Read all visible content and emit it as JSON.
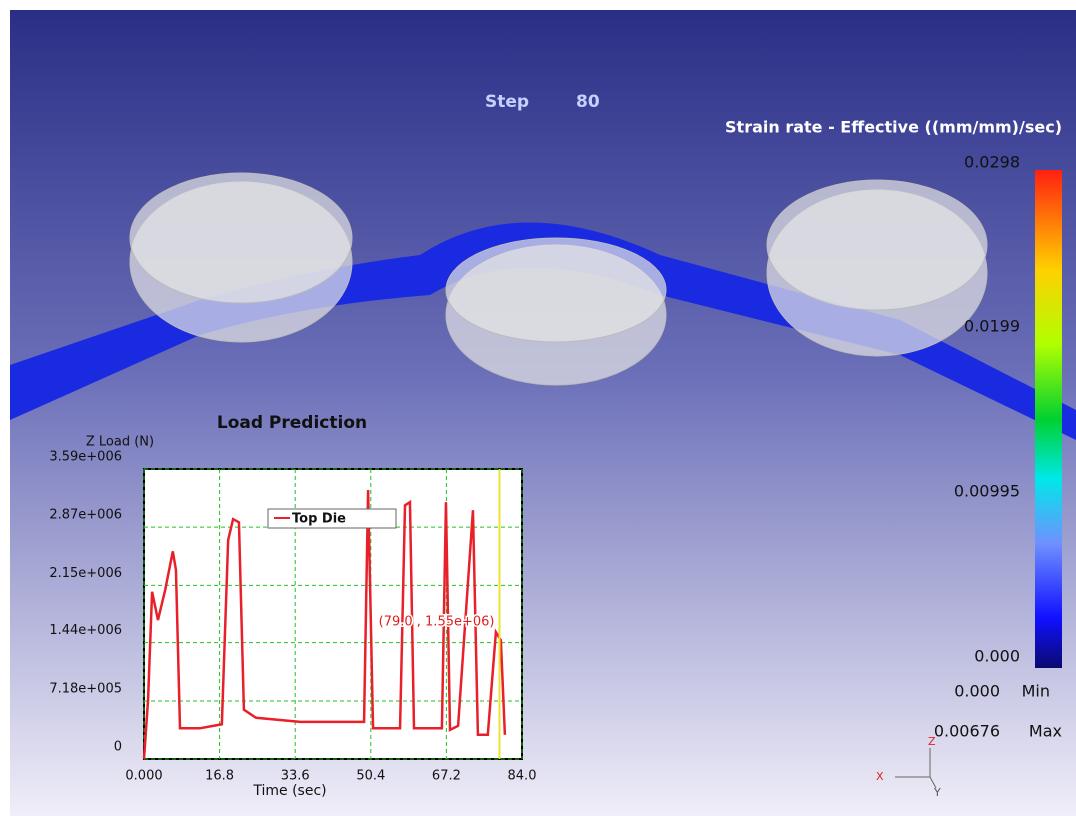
{
  "step_label": "Step",
  "step_value": "80",
  "color_legend": {
    "title": "Strain rate - Effective ((mm/mm)/sec)",
    "range": [
      0,
      0.0298
    ],
    "ticks": [
      0.0298,
      0.0199,
      0.00995,
      {
        "value": 0,
        "label": "0.000"
      }
    ],
    "min_value": "0.000",
    "min_label": "Min",
    "max_value": "0.00676",
    "max_label": "Max"
  },
  "triad": {
    "x": "X",
    "y": "Y",
    "z": "Z"
  },
  "chart_data": {
    "type": "line",
    "title": "Load Prediction",
    "y_label": "Z Load (N)",
    "x_label": "Time (sec)",
    "x": [
      0,
      0.9,
      1.8,
      3.1,
      4.7,
      6.4,
      7.1,
      8.0,
      12.4,
      17.3,
      18.7,
      19.8,
      21.1,
      22.2,
      24.9,
      34.7,
      48.9,
      49.8,
      50.9,
      56.9,
      58.0,
      59.1,
      60.0,
      66.2,
      67.1,
      68.0,
      69.8,
      73.1,
      74.2,
      76.4,
      78.2,
      79.3,
      80.2
    ],
    "series": [
      {
        "name": "Top Die",
        "color": "#e8202a",
        "values": [
          0,
          730000,
          2070000,
          1720000,
          2090000,
          2570000,
          2340000,
          380000,
          380000,
          430000,
          2710000,
          2970000,
          2930000,
          610000,
          510000,
          460000,
          460000,
          3330000,
          380000,
          380000,
          3140000,
          3180000,
          380000,
          380000,
          3180000,
          360000,
          410000,
          3080000,
          300000,
          300000,
          1570000,
          1470000,
          300000
        ]
      }
    ],
    "xlim": [
      0,
      84
    ],
    "ylim": [
      0,
      3590000
    ],
    "xticks": [
      {
        "value": 0,
        "label": "0.000"
      },
      16.8,
      33.6,
      50.4,
      67.2,
      {
        "value": 84,
        "label": "84.0"
      }
    ],
    "yticks": [
      0,
      {
        "value": 718000,
        "label": "7.18e+005"
      },
      {
        "value": 1440000,
        "label": "1.44e+006"
      },
      {
        "value": 2150000,
        "label": "2.15e+006"
      },
      {
        "value": 2870000,
        "label": "2.87e+006"
      },
      {
        "value": 3590000,
        "label": "3.59e+006"
      }
    ],
    "grid": true,
    "cursor": {
      "x": 79.0,
      "y": 1550000,
      "label": "(79.0 , 1.55e+06)",
      "color": "#f2e030"
    }
  }
}
